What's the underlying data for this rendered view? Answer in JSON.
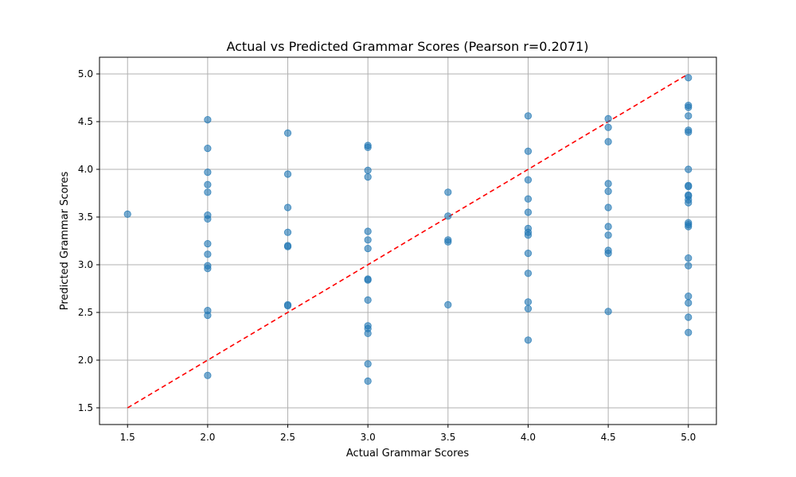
{
  "chart_data": {
    "type": "scatter",
    "title": "Actual vs Predicted Grammar Scores (Pearson r=0.2071)",
    "xlabel": "Actual Grammar Scores",
    "ylabel": "Predicted Grammar Scores",
    "xlim": [
      1.325,
      5.175
    ],
    "ylim": [
      1.325,
      5.175
    ],
    "x_ticks": [
      "1.5",
      "2.0",
      "2.5",
      "3.0",
      "3.5",
      "4.0",
      "4.5",
      "5.0"
    ],
    "y_ticks": [
      "1.5",
      "2.0",
      "2.5",
      "3.0",
      "3.5",
      "4.0",
      "4.5",
      "5.0"
    ],
    "grid": true,
    "point_color": "#1f77b4",
    "point_alpha": 0.6,
    "reference_line": {
      "from": [
        1.5,
        1.5
      ],
      "to": [
        5.0,
        5.0
      ],
      "color": "#ff0000",
      "style": "dashed"
    },
    "points": [
      {
        "x": 1.5,
        "y": 3.53
      },
      {
        "x": 2.0,
        "y": 4.52
      },
      {
        "x": 2.0,
        "y": 4.22
      },
      {
        "x": 2.0,
        "y": 3.97
      },
      {
        "x": 2.0,
        "y": 3.84
      },
      {
        "x": 2.0,
        "y": 3.76
      },
      {
        "x": 2.0,
        "y": 3.52
      },
      {
        "x": 2.0,
        "y": 3.48
      },
      {
        "x": 2.0,
        "y": 3.22
      },
      {
        "x": 2.0,
        "y": 3.11
      },
      {
        "x": 2.0,
        "y": 2.99
      },
      {
        "x": 2.0,
        "y": 2.96
      },
      {
        "x": 2.0,
        "y": 2.52
      },
      {
        "x": 2.0,
        "y": 2.47
      },
      {
        "x": 2.0,
        "y": 1.84
      },
      {
        "x": 2.5,
        "y": 4.38
      },
      {
        "x": 2.5,
        "y": 3.95
      },
      {
        "x": 2.5,
        "y": 3.6
      },
      {
        "x": 2.5,
        "y": 3.34
      },
      {
        "x": 2.5,
        "y": 3.2
      },
      {
        "x": 2.5,
        "y": 3.19
      },
      {
        "x": 2.5,
        "y": 2.58
      },
      {
        "x": 2.5,
        "y": 2.57
      },
      {
        "x": 3.0,
        "y": 4.25
      },
      {
        "x": 3.0,
        "y": 4.23
      },
      {
        "x": 3.0,
        "y": 3.99
      },
      {
        "x": 3.0,
        "y": 3.92
      },
      {
        "x": 3.0,
        "y": 3.35
      },
      {
        "x": 3.0,
        "y": 3.26
      },
      {
        "x": 3.0,
        "y": 3.17
      },
      {
        "x": 3.0,
        "y": 2.85
      },
      {
        "x": 3.0,
        "y": 2.84
      },
      {
        "x": 3.0,
        "y": 2.63
      },
      {
        "x": 3.0,
        "y": 2.36
      },
      {
        "x": 3.0,
        "y": 2.33
      },
      {
        "x": 3.0,
        "y": 2.28
      },
      {
        "x": 3.0,
        "y": 1.96
      },
      {
        "x": 3.0,
        "y": 1.78
      },
      {
        "x": 3.5,
        "y": 3.76
      },
      {
        "x": 3.5,
        "y": 3.51
      },
      {
        "x": 3.5,
        "y": 3.26
      },
      {
        "x": 3.5,
        "y": 3.24
      },
      {
        "x": 3.5,
        "y": 2.58
      },
      {
        "x": 4.0,
        "y": 4.56
      },
      {
        "x": 4.0,
        "y": 4.19
      },
      {
        "x": 4.0,
        "y": 3.89
      },
      {
        "x": 4.0,
        "y": 3.69
      },
      {
        "x": 4.0,
        "y": 3.55
      },
      {
        "x": 4.0,
        "y": 3.38
      },
      {
        "x": 4.0,
        "y": 3.34
      },
      {
        "x": 4.0,
        "y": 3.31
      },
      {
        "x": 4.0,
        "y": 3.12
      },
      {
        "x": 4.0,
        "y": 2.91
      },
      {
        "x": 4.0,
        "y": 2.61
      },
      {
        "x": 4.0,
        "y": 2.54
      },
      {
        "x": 4.0,
        "y": 2.21
      },
      {
        "x": 4.5,
        "y": 4.53
      },
      {
        "x": 4.5,
        "y": 4.44
      },
      {
        "x": 4.5,
        "y": 4.29
      },
      {
        "x": 4.5,
        "y": 3.85
      },
      {
        "x": 4.5,
        "y": 3.77
      },
      {
        "x": 4.5,
        "y": 3.6
      },
      {
        "x": 4.5,
        "y": 3.4
      },
      {
        "x": 4.5,
        "y": 3.31
      },
      {
        "x": 4.5,
        "y": 3.15
      },
      {
        "x": 4.5,
        "y": 3.12
      },
      {
        "x": 4.5,
        "y": 2.51
      },
      {
        "x": 5.0,
        "y": 4.96
      },
      {
        "x": 5.0,
        "y": 4.67
      },
      {
        "x": 5.0,
        "y": 4.65
      },
      {
        "x": 5.0,
        "y": 4.56
      },
      {
        "x": 5.0,
        "y": 4.41
      },
      {
        "x": 5.0,
        "y": 4.39
      },
      {
        "x": 5.0,
        "y": 4.0
      },
      {
        "x": 5.0,
        "y": 3.83
      },
      {
        "x": 5.0,
        "y": 3.82
      },
      {
        "x": 5.0,
        "y": 3.73
      },
      {
        "x": 5.0,
        "y": 3.72
      },
      {
        "x": 5.0,
        "y": 3.68
      },
      {
        "x": 5.0,
        "y": 3.65
      },
      {
        "x": 5.0,
        "y": 3.44
      },
      {
        "x": 5.0,
        "y": 3.42
      },
      {
        "x": 5.0,
        "y": 3.4
      },
      {
        "x": 5.0,
        "y": 3.07
      },
      {
        "x": 5.0,
        "y": 2.99
      },
      {
        "x": 5.0,
        "y": 2.67
      },
      {
        "x": 5.0,
        "y": 2.6
      },
      {
        "x": 5.0,
        "y": 2.45
      },
      {
        "x": 5.0,
        "y": 2.29
      }
    ]
  }
}
